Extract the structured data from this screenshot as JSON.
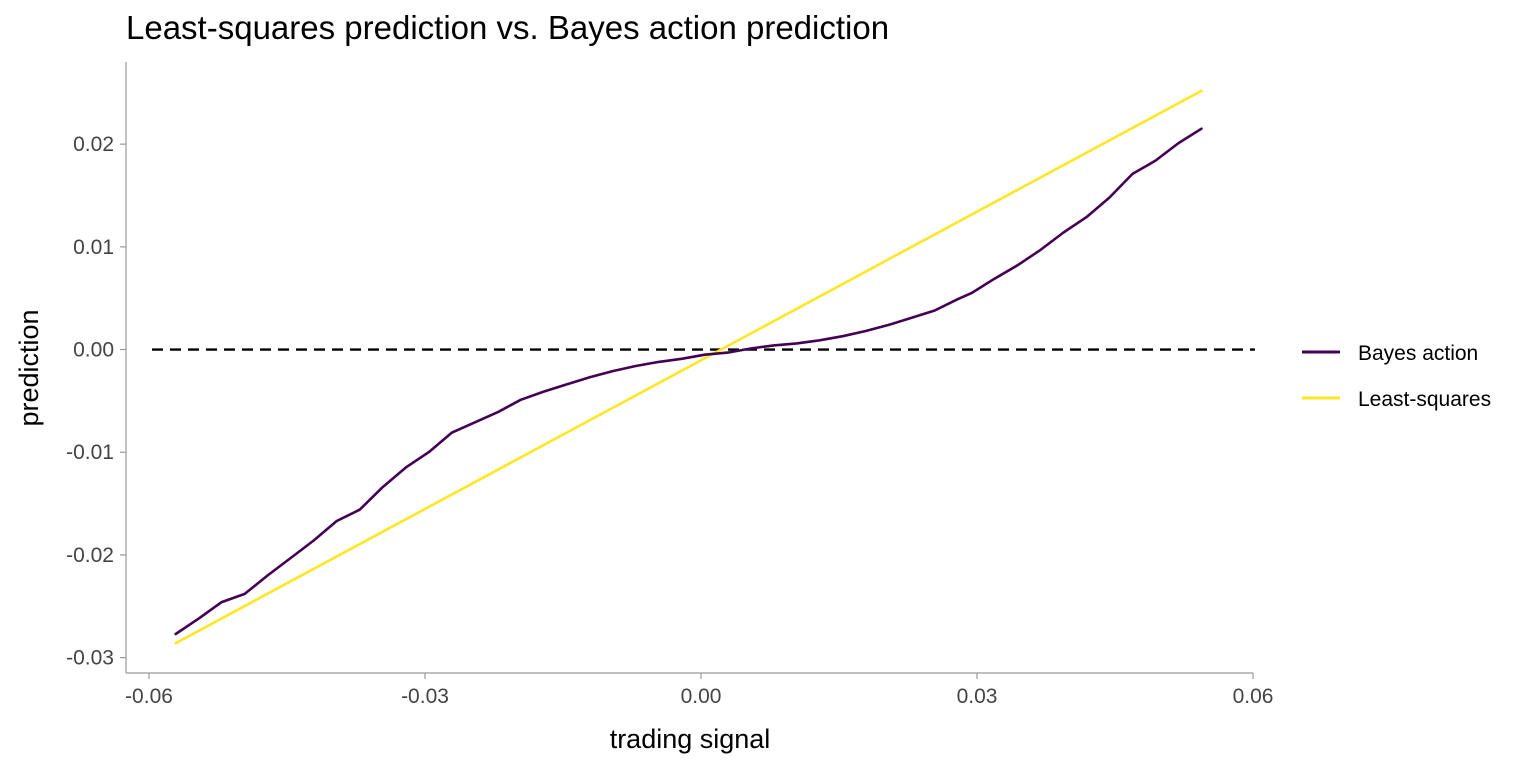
{
  "chart_data": {
    "type": "line",
    "title": "Least-squares prediction vs. Bayes action prediction",
    "xlabel": "trading signal",
    "ylabel": "prediction",
    "xlim": [
      -0.0625,
      0.06
    ],
    "ylim": [
      -0.0315,
      0.028
    ],
    "x_ticks": [
      {
        "value": -0.06,
        "label": "-0.06"
      },
      {
        "value": -0.03,
        "label": "-0.03"
      },
      {
        "value": 0.0,
        "label": "0.00"
      },
      {
        "value": 0.03,
        "label": "0.03"
      },
      {
        "value": 0.06,
        "label": "0.06"
      }
    ],
    "y_ticks": [
      {
        "value": -0.03,
        "label": "-0.03"
      },
      {
        "value": -0.02,
        "label": "-0.02"
      },
      {
        "value": -0.01,
        "label": "-0.01"
      },
      {
        "value": 0.0,
        "label": "0.00"
      },
      {
        "value": 0.01,
        "label": "0.01"
      },
      {
        "value": 0.02,
        "label": "0.02"
      }
    ],
    "grid": false,
    "legend_position": "right",
    "reference_line": {
      "y": 0,
      "style": "dashed",
      "color": "#000000"
    },
    "series": [
      {
        "name": "Bayes action",
        "color": "#440154",
        "x": [
          -0.0571,
          -0.0546,
          -0.0521,
          -0.0496,
          -0.0471,
          -0.0446,
          -0.0421,
          -0.0396,
          -0.0371,
          -0.0346,
          -0.0321,
          -0.0296,
          -0.0271,
          -0.0246,
          -0.0221,
          -0.0196,
          -0.0171,
          -0.0146,
          -0.0121,
          -0.0096,
          -0.0071,
          -0.0046,
          -0.0021,
          0.0004,
          0.0029,
          0.0054,
          0.0079,
          0.0104,
          0.0129,
          0.0154,
          0.0179,
          0.0204,
          0.0229,
          0.0254,
          0.0279,
          0.0294,
          0.0319,
          0.0344,
          0.0369,
          0.0394,
          0.0419,
          0.0444,
          0.0469,
          0.0494,
          0.0519,
          0.0544
        ],
        "y": [
          -0.0277,
          -0.0262,
          -0.0246,
          -0.0238,
          -0.022,
          -0.0203,
          -0.0186,
          -0.0167,
          -0.0156,
          -0.0134,
          -0.0115,
          -0.01,
          -0.0081,
          -0.0071,
          -0.0061,
          -0.0049,
          -0.0041,
          -0.0034,
          -0.0027,
          -0.0021,
          -0.0016,
          -0.0012,
          -0.0009,
          -0.0005,
          -0.0003,
          0.0001,
          0.0004,
          0.0006,
          0.0009,
          0.0013,
          0.0018,
          0.0024,
          0.0031,
          0.0038,
          0.0049,
          0.0055,
          0.0069,
          0.0082,
          0.0097,
          0.0114,
          0.0129,
          0.0148,
          0.0171,
          0.0184,
          0.0201,
          0.0215
        ]
      },
      {
        "name": "Least-squares",
        "color": "#FDE725",
        "x": [
          -0.0571,
          0.0544
        ],
        "y": [
          -0.0286,
          0.0252
        ]
      }
    ]
  }
}
